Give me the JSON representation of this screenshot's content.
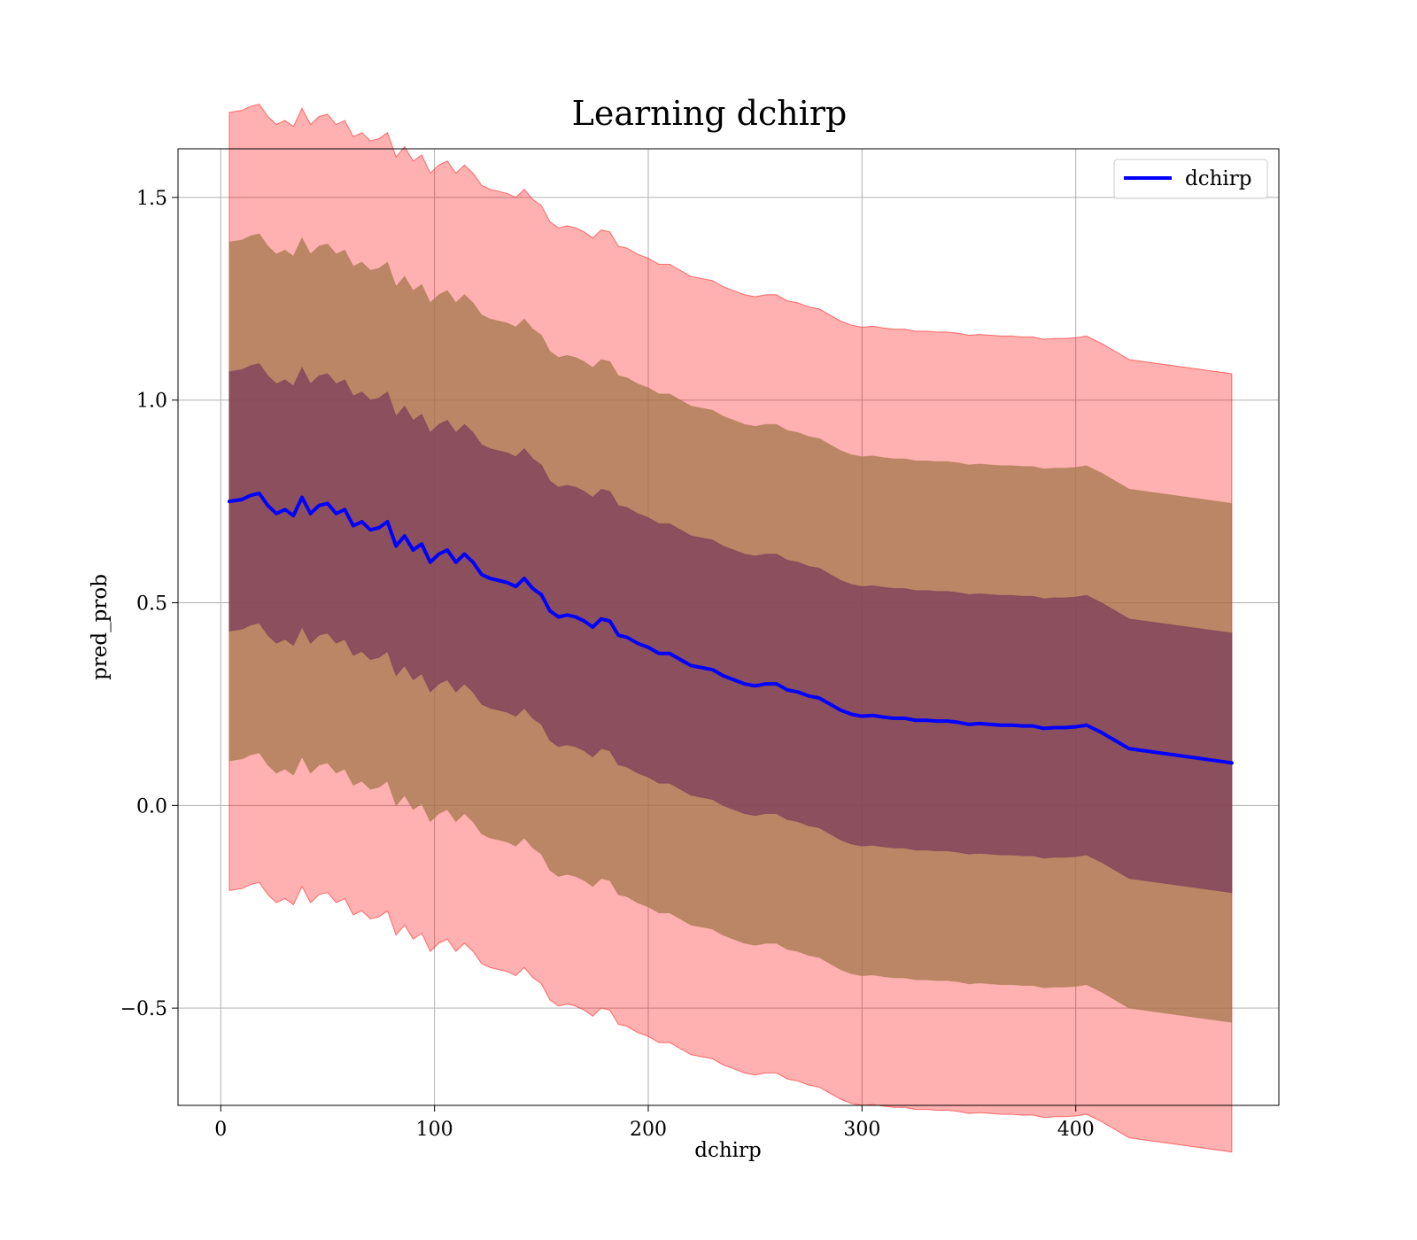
{
  "chart_data": {
    "type": "line",
    "title": "Learning dchirp",
    "xlabel": "dchirp",
    "ylabel": "pred_prob",
    "xlim": [
      -20,
      495
    ],
    "ylim": [
      -0.74,
      1.62
    ],
    "xticks": [
      0,
      100,
      200,
      300,
      400
    ],
    "xtick_labels": [
      "0",
      "100",
      "200",
      "300",
      "400"
    ],
    "yticks": [
      -0.5,
      0.0,
      0.5,
      1.0,
      1.5
    ],
    "ytick_labels": [
      "−0.5",
      "0.0",
      "0.5",
      "1.0",
      "1.5"
    ],
    "grid": true,
    "legend": {
      "position": "top-right",
      "entries": [
        "dchirp"
      ]
    },
    "colors": {
      "line": "#0000ff",
      "band_outer": "#ff0000",
      "band_middle": "#8b5a2b",
      "band_inner": "#6a1f4a"
    },
    "bands": [
      {
        "sigma": 3,
        "color": "#ff0000",
        "opacity": 0.31
      },
      {
        "sigma": 2,
        "color": "#a87a50",
        "opacity": 0.78
      },
      {
        "sigma": 1,
        "color": "#7a3a5a",
        "opacity": 0.72
      }
    ],
    "series": [
      {
        "name": "dchirp",
        "x": [
          4,
          10,
          14,
          18,
          22,
          26,
          30,
          34,
          38,
          42,
          46,
          50,
          54,
          58,
          62,
          66,
          70,
          74,
          78,
          82,
          86,
          90,
          94,
          98,
          102,
          106,
          110,
          114,
          118,
          122,
          126,
          130,
          134,
          138,
          142,
          146,
          150,
          154,
          158,
          162,
          166,
          170,
          174,
          178,
          182,
          186,
          190,
          195,
          200,
          205,
          210,
          215,
          220,
          225,
          230,
          235,
          240,
          245,
          250,
          255,
          260,
          265,
          270,
          275,
          280,
          285,
          290,
          295,
          300,
          305,
          310,
          315,
          320,
          325,
          330,
          335,
          340,
          345,
          350,
          355,
          360,
          365,
          370,
          375,
          380,
          385,
          390,
          395,
          400,
          405,
          412,
          425,
          473
        ],
        "y": [
          0.75,
          0.755,
          0.765,
          0.77,
          0.74,
          0.72,
          0.73,
          0.715,
          0.76,
          0.72,
          0.74,
          0.745,
          0.72,
          0.73,
          0.69,
          0.7,
          0.68,
          0.685,
          0.7,
          0.64,
          0.665,
          0.63,
          0.645,
          0.6,
          0.62,
          0.63,
          0.6,
          0.62,
          0.6,
          0.57,
          0.56,
          0.555,
          0.55,
          0.54,
          0.56,
          0.535,
          0.52,
          0.48,
          0.465,
          0.47,
          0.465,
          0.455,
          0.44,
          0.46,
          0.455,
          0.42,
          0.415,
          0.4,
          0.39,
          0.375,
          0.375,
          0.36,
          0.345,
          0.34,
          0.335,
          0.32,
          0.31,
          0.3,
          0.295,
          0.3,
          0.3,
          0.285,
          0.28,
          0.27,
          0.265,
          0.25,
          0.235,
          0.225,
          0.22,
          0.222,
          0.218,
          0.215,
          0.215,
          0.21,
          0.21,
          0.208,
          0.208,
          0.205,
          0.2,
          0.202,
          0.2,
          0.198,
          0.198,
          0.196,
          0.196,
          0.19,
          0.192,
          0.192,
          0.194,
          0.198,
          0.18,
          0.14,
          0.105
        ],
        "sigma": [
          0.32,
          0.32,
          0.32,
          0.32,
          0.32,
          0.32,
          0.32,
          0.32,
          0.32,
          0.32,
          0.32,
          0.32,
          0.32,
          0.32,
          0.32,
          0.32,
          0.32,
          0.32,
          0.32,
          0.32,
          0.32,
          0.32,
          0.32,
          0.32,
          0.32,
          0.32,
          0.32,
          0.32,
          0.32,
          0.32,
          0.32,
          0.32,
          0.32,
          0.32,
          0.32,
          0.32,
          0.32,
          0.32,
          0.32,
          0.32,
          0.32,
          0.32,
          0.32,
          0.32,
          0.32,
          0.32,
          0.32,
          0.32,
          0.32,
          0.32,
          0.32,
          0.32,
          0.32,
          0.32,
          0.32,
          0.32,
          0.32,
          0.32,
          0.32,
          0.32,
          0.32,
          0.32,
          0.32,
          0.32,
          0.32,
          0.32,
          0.32,
          0.32,
          0.32,
          0.32,
          0.32,
          0.32,
          0.32,
          0.32,
          0.32,
          0.32,
          0.32,
          0.32,
          0.32,
          0.32,
          0.32,
          0.32,
          0.32,
          0.32,
          0.32,
          0.32,
          0.32,
          0.32,
          0.32,
          0.32,
          0.32,
          0.32,
          0.32
        ]
      }
    ]
  }
}
